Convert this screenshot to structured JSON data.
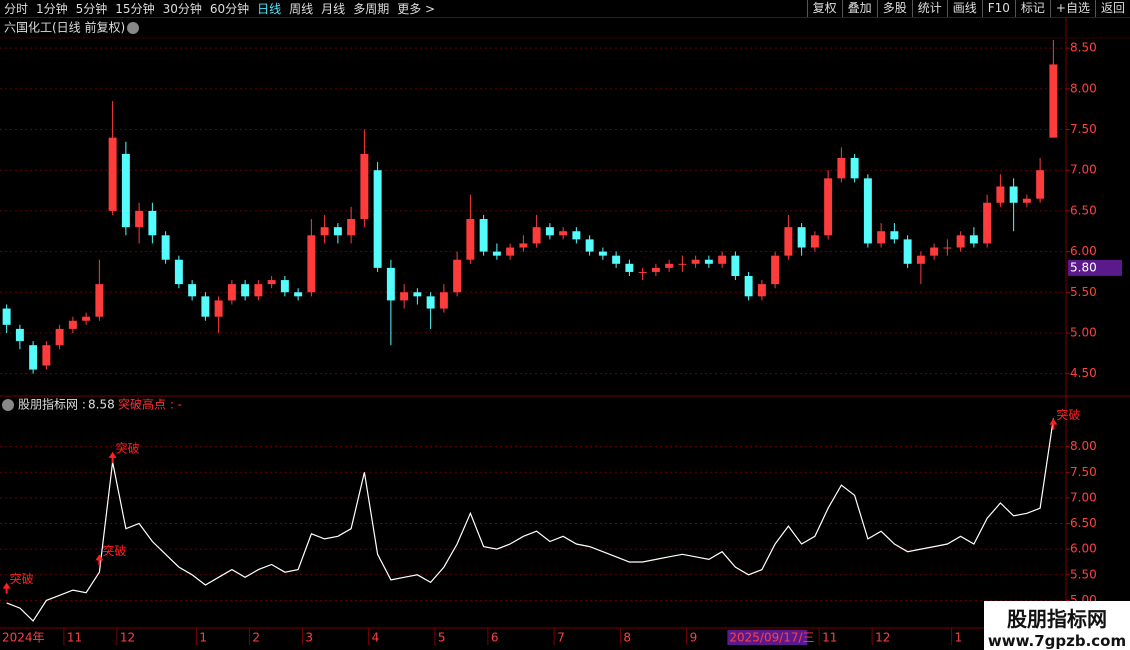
{
  "toolbar": {
    "periods": [
      "分时",
      "1分钟",
      "5分钟",
      "15分钟",
      "30分钟",
      "60分钟",
      "日线",
      "周线",
      "月线",
      "多周期",
      "更多 >"
    ],
    "active_period": "日线",
    "buttons": [
      "复权",
      "叠加",
      "多股",
      "统计",
      "画线",
      "F10",
      "标记",
      "+自选",
      "返回"
    ]
  },
  "chart_data": [
    {
      "type": "candlestick",
      "title": "六国化工(日线 前复权)",
      "up_color": "#ff3c3c",
      "down_color": "#54fcfc",
      "categories": [
        "2024年",
        null,
        null,
        null,
        null,
        "11",
        null,
        null,
        null,
        "12",
        null,
        null,
        null,
        null,
        null,
        "1",
        null,
        null,
        null,
        "2",
        null,
        null,
        null,
        "3",
        null,
        null,
        null,
        null,
        "4",
        null,
        null,
        null,
        null,
        "5",
        null,
        null,
        null,
        "6",
        null,
        null,
        null,
        null,
        "7",
        null,
        null,
        null,
        null,
        "8",
        null,
        null,
        null,
        null,
        "9",
        null,
        null,
        "2025/09/17/三",
        null,
        null,
        null,
        null,
        null,
        null,
        "11",
        null,
        null,
        null,
        "12",
        null,
        null,
        null,
        null,
        null,
        "1",
        null,
        null,
        null,
        null,
        null,
        null,
        null
      ],
      "cursor_index": 55,
      "cursor_color": "#5a1a8c",
      "open": [
        5.3,
        5.05,
        4.85,
        4.6,
        4.85,
        5.05,
        5.15,
        5.2,
        6.5,
        7.2,
        6.3,
        6.5,
        6.2,
        5.9,
        5.6,
        5.45,
        5.2,
        5.4,
        5.6,
        5.45,
        5.6,
        5.65,
        5.5,
        5.5,
        6.2,
        6.3,
        6.2,
        6.4,
        7.0,
        5.8,
        5.4,
        5.5,
        5.45,
        5.3,
        5.5,
        5.9,
        6.4,
        6.0,
        5.95,
        6.05,
        6.1,
        6.3,
        6.2,
        6.25,
        6.15,
        6.0,
        5.95,
        5.85,
        5.75,
        5.75,
        5.8,
        5.85,
        5.85,
        5.9,
        5.85,
        5.95,
        5.7,
        5.45,
        5.6,
        5.95,
        6.3,
        6.05,
        6.2,
        6.9,
        7.15,
        6.9,
        6.1,
        6.25,
        6.15,
        5.85,
        5.95,
        6.05,
        6.05,
        6.2,
        6.1,
        6.6,
        6.8,
        6.6,
        6.65,
        7.4
      ],
      "high": [
        5.35,
        5.1,
        4.9,
        4.9,
        5.1,
        5.2,
        5.25,
        5.9,
        7.85,
        7.35,
        6.6,
        6.6,
        6.25,
        5.95,
        5.65,
        5.5,
        5.45,
        5.65,
        5.65,
        5.65,
        5.7,
        5.7,
        5.55,
        6.4,
        6.45,
        6.35,
        6.55,
        7.5,
        7.1,
        5.9,
        5.6,
        5.55,
        5.5,
        5.6,
        6.0,
        6.7,
        6.45,
        6.1,
        6.1,
        6.2,
        6.45,
        6.35,
        6.3,
        6.3,
        6.2,
        6.05,
        6.0,
        5.9,
        5.8,
        5.85,
        5.9,
        5.95,
        5.95,
        5.95,
        6.0,
        6.0,
        5.75,
        5.65,
        6.0,
        6.45,
        6.35,
        6.25,
        7.0,
        7.28,
        7.2,
        6.95,
        6.35,
        6.35,
        6.2,
        6.0,
        6.1,
        6.15,
        6.25,
        6.3,
        6.7,
        6.95,
        6.9,
        6.7,
        7.15,
        8.6
      ],
      "low": [
        5.0,
        4.8,
        4.5,
        4.55,
        4.8,
        5.0,
        5.1,
        5.15,
        6.45,
        6.2,
        6.1,
        6.1,
        5.85,
        5.55,
        5.4,
        5.15,
        5.0,
        5.35,
        5.4,
        5.4,
        5.55,
        5.45,
        5.4,
        5.45,
        6.1,
        6.1,
        6.1,
        6.3,
        5.75,
        4.85,
        5.3,
        5.35,
        5.05,
        5.25,
        5.45,
        5.85,
        5.95,
        5.9,
        5.9,
        6.0,
        6.05,
        6.15,
        6.15,
        6.1,
        5.95,
        5.9,
        5.8,
        5.7,
        5.65,
        5.7,
        5.75,
        5.75,
        5.8,
        5.8,
        5.8,
        5.65,
        5.4,
        5.4,
        5.55,
        5.9,
        5.95,
        6.0,
        6.15,
        6.85,
        6.85,
        6.05,
        6.05,
        6.1,
        5.8,
        5.6,
        5.9,
        5.95,
        6.0,
        6.05,
        6.05,
        6.55,
        6.25,
        6.55,
        6.6,
        7.4
      ],
      "close": [
        5.1,
        4.9,
        4.55,
        4.85,
        5.05,
        5.15,
        5.2,
        5.6,
        7.4,
        6.3,
        6.5,
        6.2,
        5.9,
        5.6,
        5.45,
        5.2,
        5.4,
        5.6,
        5.45,
        5.6,
        5.65,
        5.5,
        5.45,
        6.2,
        6.3,
        6.2,
        6.4,
        7.2,
        5.8,
        5.4,
        5.5,
        5.45,
        5.3,
        5.5,
        5.9,
        6.4,
        6.0,
        5.95,
        6.05,
        6.1,
        6.3,
        6.2,
        6.25,
        6.15,
        6.0,
        5.95,
        5.85,
        5.75,
        5.75,
        5.8,
        5.85,
        5.85,
        5.9,
        5.85,
        5.95,
        5.7,
        5.45,
        5.6,
        5.95,
        6.3,
        6.05,
        6.2,
        6.9,
        7.15,
        6.9,
        6.1,
        6.25,
        6.15,
        5.85,
        5.95,
        6.05,
        6.05,
        6.2,
        6.1,
        6.6,
        6.8,
        6.6,
        6.65,
        7.0,
        8.3
      ],
      "ylim": [
        4.25,
        8.6
      ],
      "yticks": [
        {
          "value": 4.5,
          "label": "4.50"
        },
        {
          "value": 5,
          "label": "5.00"
        },
        {
          "value": 5.5,
          "label": "5.50"
        },
        {
          "value": 6,
          "label": "6.00"
        },
        {
          "value": 6.5,
          "label": "6.50"
        },
        {
          "value": 7,
          "label": "7.00"
        },
        {
          "value": 7.5,
          "label": "7.50"
        },
        {
          "value": 8,
          "label": "8.00"
        },
        {
          "value": 8.5,
          "label": "8.50"
        }
      ],
      "price_tag": {
        "value": 5.8,
        "label": "5.80"
      },
      "grid": true
    },
    {
      "type": "line",
      "header": "股朋指标网 :",
      "header_value": 8.58,
      "signal_title": "突破高点 : -",
      "color": "#ffffff",
      "values": [
        4.95,
        4.85,
        4.6,
        5.0,
        5.1,
        5.2,
        5.15,
        5.55,
        7.7,
        6.4,
        6.5,
        6.15,
        5.9,
        5.65,
        5.5,
        5.3,
        5.45,
        5.6,
        5.45,
        5.6,
        5.7,
        5.55,
        5.6,
        6.3,
        6.2,
        6.25,
        6.4,
        7.5,
        5.9,
        5.4,
        5.45,
        5.5,
        5.35,
        5.65,
        6.1,
        6.7,
        6.05,
        6.0,
        6.1,
        6.25,
        6.35,
        6.15,
        6.25,
        6.1,
        6.05,
        5.95,
        5.85,
        5.75,
        5.75,
        5.8,
        5.85,
        5.9,
        5.85,
        5.8,
        5.95,
        5.65,
        5.5,
        5.6,
        6.1,
        6.45,
        6.1,
        6.25,
        6.8,
        7.25,
        7.05,
        6.2,
        6.35,
        6.1,
        5.95,
        6.0,
        6.05,
        6.1,
        6.25,
        6.1,
        6.6,
        6.9,
        6.65,
        6.7,
        6.8,
        8.55
      ],
      "signals": [
        5.25,
        null,
        null,
        null,
        null,
        null,
        null,
        5.8,
        7.8,
        null,
        null,
        null,
        null,
        null,
        null,
        null,
        null,
        null,
        null,
        null,
        null,
        null,
        null,
        null,
        null,
        null,
        null,
        null,
        null,
        null,
        null,
        null,
        null,
        null,
        null,
        null,
        null,
        null,
        null,
        null,
        null,
        null,
        null,
        null,
        null,
        null,
        null,
        null,
        null,
        null,
        null,
        null,
        null,
        null,
        null,
        null,
        null,
        null,
        null,
        null,
        null,
        null,
        null,
        null,
        null,
        null,
        null,
        null,
        null,
        null,
        null,
        null,
        null,
        null,
        null,
        null,
        null,
        null,
        null,
        8.45
      ],
      "signal_label": "突破",
      "signal_color": "#ff2020",
      "ylim": [
        4.5,
        8.95
      ],
      "yticks": [
        {
          "value": 5,
          "label": "5.00"
        },
        {
          "value": 5.5,
          "label": "5.50"
        },
        {
          "value": 6,
          "label": "6.00"
        },
        {
          "value": 6.5,
          "label": "6.50"
        },
        {
          "value": 7,
          "label": "7.00"
        },
        {
          "value": 7.5,
          "label": "7.50"
        },
        {
          "value": 8,
          "label": "8.00"
        }
      ],
      "grid": true
    }
  ],
  "watermark": {
    "title": "股朋指标网",
    "url": "www.7gpzb.com"
  }
}
